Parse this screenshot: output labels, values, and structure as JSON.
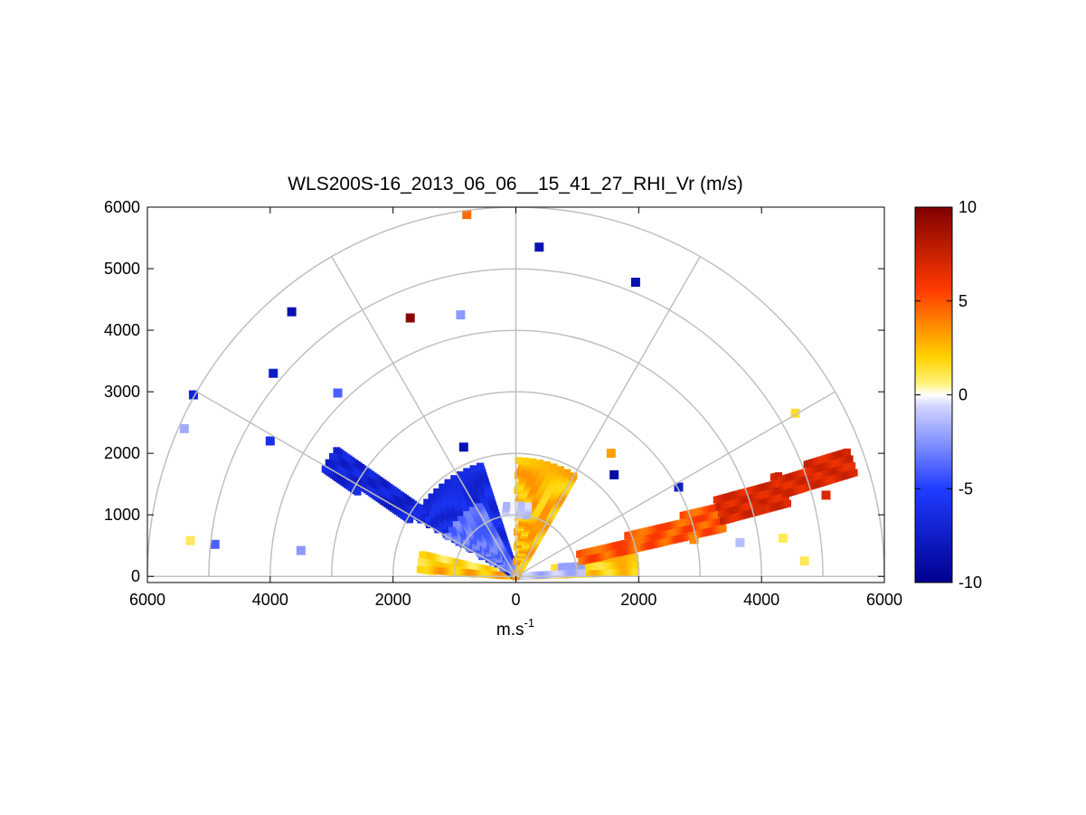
{
  "chart_data": {
    "type": "heatmap",
    "subtype": "polar-rhi",
    "title": "WLS200S-16_2013_06_06__15_41_27_RHI_Vr (m/s)",
    "xlabel": "m.s",
    "xlabel_superscript": "-1",
    "ylabel": "",
    "x_ticks": [
      "6000",
      "4000",
      "2000",
      "0",
      "2000",
      "4000",
      "6000"
    ],
    "x_tick_values": [
      -6000,
      -4000,
      -2000,
      0,
      2000,
      4000,
      6000
    ],
    "y_ticks": [
      "0",
      "1000",
      "2000",
      "3000",
      "4000",
      "5000",
      "6000"
    ],
    "y_tick_values": [
      0,
      1000,
      2000,
      3000,
      4000,
      5000,
      6000
    ],
    "xlim": [
      -6000,
      6000
    ],
    "ylim": [
      -100,
      6000
    ],
    "polar_grid": {
      "ring_ranges": [
        1000,
        2000,
        3000,
        4000,
        5000,
        6000
      ],
      "spoke_angles_deg": [
        0,
        30,
        60,
        90,
        120,
        150,
        180
      ],
      "color": "#c0c0c0"
    },
    "colorbar": {
      "min": -10,
      "max": 10,
      "ticks": [
        "10",
        "5",
        "0",
        "-5",
        "-10"
      ],
      "tick_values": [
        10,
        5,
        0,
        -5,
        -10
      ],
      "colormap": "blue-white-yellow-red"
    },
    "sectors": [
      {
        "range_min": 0,
        "range_max": 2000,
        "angle_min_deg": 2,
        "angle_max_deg": 13,
        "value": 2.0
      },
      {
        "range_min": 0,
        "range_max": 1600,
        "angle_min_deg": 167,
        "angle_max_deg": 177,
        "value": 1.5
      },
      {
        "range_min": 0,
        "range_max": 1600,
        "angle_min_deg": 176,
        "angle_max_deg": 179,
        "value": 2.5
      },
      {
        "range_min": 0,
        "range_max": 1100,
        "angle_min_deg": 3,
        "angle_max_deg": 12,
        "value": -1.5
      },
      {
        "range_min": 0,
        "range_max": 1900,
        "angle_min_deg": 108,
        "angle_max_deg": 150,
        "value": -6.5
      },
      {
        "range_min": 0,
        "range_max": 1300,
        "angle_min_deg": 118,
        "angle_max_deg": 150,
        "value": -3.5
      },
      {
        "range_min": 0,
        "range_max": 1900,
        "angle_min_deg": 60,
        "angle_max_deg": 89,
        "value": 2.5
      },
      {
        "range_min": 1100,
        "range_max": 3500,
        "angle_min_deg": 13,
        "angle_max_deg": 20,
        "value": 4.5
      },
      {
        "range_min": 3500,
        "range_max": 4600,
        "angle_min_deg": 15,
        "angle_max_deg": 21,
        "value": 6.5
      },
      {
        "range_min": 4600,
        "range_max": 5800,
        "angle_min_deg": 17,
        "angle_max_deg": 21,
        "value": 6.5
      },
      {
        "range_min": 1800,
        "range_max": 3600,
        "angle_min_deg": 145,
        "angle_max_deg": 152,
        "value": -7.0
      },
      {
        "range_min": 1000,
        "range_max": 1200,
        "angle_min_deg": 80,
        "angle_max_deg": 100,
        "value": -1.0
      }
    ],
    "points": [
      {
        "x": 4550,
        "y": 2650,
        "value": 1.5
      },
      {
        "x": 4700,
        "y": 250,
        "value": 1.0
      },
      {
        "x": 4350,
        "y": 620,
        "value": 1.0
      },
      {
        "x": 5050,
        "y": 1320,
        "value": 6.5
      },
      {
        "x": 4000,
        "y": 1100,
        "value": 6.5
      },
      {
        "x": -5300,
        "y": 580,
        "value": 1.0
      },
      {
        "x": -4900,
        "y": 520,
        "value": -4.0
      },
      {
        "x": -5400,
        "y": 2400,
        "value": -2.0
      },
      {
        "x": -5250,
        "y": 2950,
        "value": -7.0
      },
      {
        "x": -4000,
        "y": 2200,
        "value": -6.0
      },
      {
        "x": -3950,
        "y": 3300,
        "value": -7.5
      },
      {
        "x": -3650,
        "y": 4300,
        "value": -8.5
      },
      {
        "x": -2900,
        "y": 2980,
        "value": -4.0
      },
      {
        "x": -1720,
        "y": 4200,
        "value": 9.5
      },
      {
        "x": -900,
        "y": 4250,
        "value": -2.5
      },
      {
        "x": -850,
        "y": 2100,
        "value": -8.5
      },
      {
        "x": -800,
        "y": 5880,
        "value": 4.0
      },
      {
        "x": 380,
        "y": 5350,
        "value": -8.5
      },
      {
        "x": 1950,
        "y": 4780,
        "value": -8.5
      },
      {
        "x": 1550,
        "y": 2000,
        "value": 3.0
      },
      {
        "x": 2650,
        "y": 1450,
        "value": -7.5
      },
      {
        "x": 2900,
        "y": 600,
        "value": 3.5
      },
      {
        "x": 3650,
        "y": 550,
        "value": -1.5
      },
      {
        "x": -3500,
        "y": 420,
        "value": -2.5
      },
      {
        "x": 1600,
        "y": 1650,
        "value": -9.0
      }
    ]
  }
}
